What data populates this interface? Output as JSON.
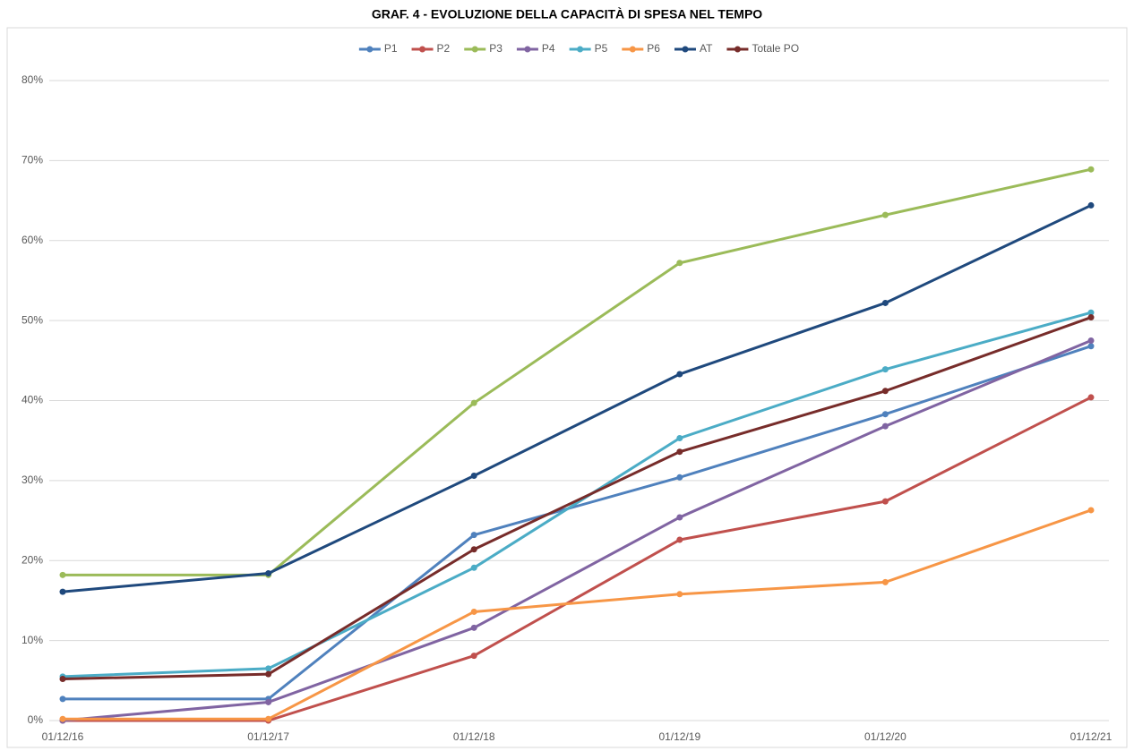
{
  "chart_data": {
    "type": "line",
    "title": "GRAF. 4 - EVOLUZIONE DELLA CAPACITÀ DI SPESA NEL TEMPO",
    "categories": [
      "01/12/16",
      "01/12/17",
      "01/12/18",
      "01/12/19",
      "01/12/20",
      "01/12/21"
    ],
    "series": [
      {
        "name": "P1",
        "color": "#4f81bd",
        "values": [
          2.7,
          2.7,
          23.2,
          30.4,
          38.3,
          46.8
        ]
      },
      {
        "name": "P2",
        "color": "#c0504d",
        "values": [
          0,
          0,
          8.1,
          22.6,
          27.4,
          40.4
        ]
      },
      {
        "name": "P3",
        "color": "#9bbb59",
        "values": [
          18.2,
          18.2,
          39.7,
          57.2,
          63.2,
          68.9
        ]
      },
      {
        "name": "P4",
        "color": "#8064a2",
        "values": [
          0,
          2.3,
          11.6,
          25.4,
          36.8,
          47.5
        ]
      },
      {
        "name": "P5",
        "color": "#4bacc6",
        "values": [
          5.5,
          6.5,
          19.1,
          35.3,
          43.9,
          51.0
        ]
      },
      {
        "name": "P6",
        "color": "#f79646",
        "values": [
          0.2,
          0.2,
          13.6,
          15.8,
          17.3,
          26.3
        ]
      },
      {
        "name": "AT",
        "color": "#1f497d",
        "values": [
          16.1,
          18.4,
          30.6,
          43.3,
          52.2,
          64.4
        ]
      },
      {
        "name": "Totale PO",
        "color": "#772c2a",
        "values": [
          5.2,
          5.8,
          21.4,
          33.6,
          41.2,
          50.4
        ]
      }
    ],
    "ylim": [
      0,
      80
    ],
    "yticks": [
      {
        "value": 0,
        "label": "0%"
      },
      {
        "value": 10,
        "label": "10%"
      },
      {
        "value": 20,
        "label": "20%"
      },
      {
        "value": 30,
        "label": "30%"
      },
      {
        "value": 40,
        "label": "40%"
      },
      {
        "value": 50,
        "label": "50%"
      },
      {
        "value": 60,
        "label": "60%"
      },
      {
        "value": 70,
        "label": "70%"
      },
      {
        "value": 80,
        "label": "80%"
      }
    ],
    "grid": true,
    "legend": "top"
  }
}
